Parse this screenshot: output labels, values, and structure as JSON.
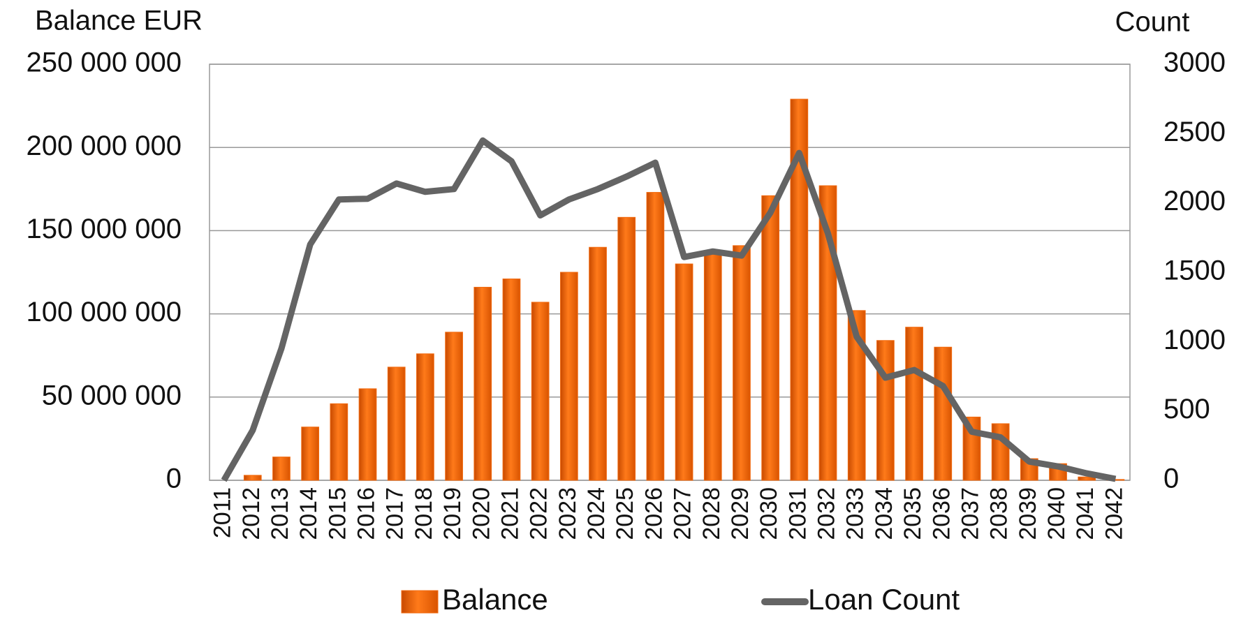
{
  "chart_data": {
    "type": "bar",
    "y_label": "Balance EUR",
    "y2_label": "Count",
    "categories": [
      "2011",
      "2012",
      "2013",
      "2014",
      "2015",
      "2016",
      "2017",
      "2018",
      "2019",
      "2020",
      "2021",
      "2022",
      "2023",
      "2024",
      "2025",
      "2026",
      "2027",
      "2028",
      "2029",
      "2030",
      "2031",
      "2032",
      "2033",
      "2034",
      "2035",
      "2036",
      "2037",
      "2038",
      "2039",
      "2040",
      "2041",
      "2042"
    ],
    "series": [
      {
        "name": "Balance",
        "type": "bar",
        "color": "#f26a0f",
        "values": [
          0,
          3000000,
          14000000,
          32000000,
          46000000,
          55000000,
          68000000,
          76000000,
          89000000,
          116000000,
          121000000,
          107000000,
          125000000,
          140000000,
          158000000,
          173000000,
          130000000,
          137000000,
          141000000,
          171000000,
          229000000,
          177000000,
          102000000,
          84000000,
          92000000,
          80000000,
          38000000,
          34000000,
          13000000,
          10000000,
          2000000,
          500000
        ]
      },
      {
        "name": "Loan Count",
        "type": "line",
        "axis": "y2",
        "color": "#646464",
        "values": [
          0,
          360,
          950,
          1700,
          2025,
          2030,
          2140,
          2080,
          2100,
          2450,
          2300,
          1910,
          2025,
          2100,
          2190,
          2290,
          1610,
          1650,
          1620,
          1930,
          2360,
          1780,
          1035,
          740,
          795,
          680,
          350,
          310,
          135,
          100,
          50,
          10
        ]
      }
    ],
    "ylim": [
      0,
      250000000
    ],
    "yticks": [
      0,
      {
        "value": 50000000,
        "label": "50 000 000"
      },
      {
        "value": 100000000,
        "label": "100 000 000"
      },
      {
        "value": 150000000,
        "label": "150 000 000"
      },
      {
        "value": 200000000,
        "label": "200 000 000"
      },
      {
        "value": 250000000,
        "label": "250 000 000"
      }
    ],
    "y2lim": [
      0,
      3000
    ],
    "y2ticks": [
      0,
      500,
      1000,
      1500,
      2000,
      2500,
      3000
    ],
    "grid": true,
    "legend": "bottom"
  }
}
